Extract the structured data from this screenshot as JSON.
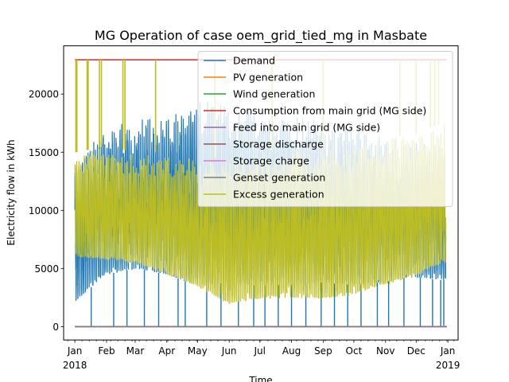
{
  "chart_data": {
    "type": "line",
    "title": "MG Operation of case oem_grid_tied_mg in Masbate",
    "xlabel": "Time",
    "ylabel": "Electricity flow in kWh",
    "x_range": [
      "2017-12-21",
      "2019-01-11"
    ],
    "ylim": [
      -1150,
      24150
    ],
    "yticks": [
      0,
      5000,
      10000,
      15000,
      20000
    ],
    "ytick_labels": [
      "0",
      "5000",
      "10000",
      "15000",
      "20000"
    ],
    "xticks": [
      {
        "date": "2018-01-01",
        "label": "Jan",
        "year": "2018"
      },
      {
        "date": "2018-02-01",
        "label": "Feb"
      },
      {
        "date": "2018-03-01",
        "label": "Mar"
      },
      {
        "date": "2018-04-01",
        "label": "Apr"
      },
      {
        "date": "2018-05-01",
        "label": "May"
      },
      {
        "date": "2018-06-01",
        "label": "Jun"
      },
      {
        "date": "2018-07-01",
        "label": "Jul"
      },
      {
        "date": "2018-08-01",
        "label": "Aug"
      },
      {
        "date": "2018-09-01",
        "label": "Sep"
      },
      {
        "date": "2018-10-01",
        "label": "Oct"
      },
      {
        "date": "2018-11-01",
        "label": "Nov"
      },
      {
        "date": "2018-12-01",
        "label": "Dec"
      },
      {
        "date": "2019-01-01",
        "label": "Jan",
        "year": "2019"
      }
    ],
    "grid": false,
    "legend_position": "upper-right",
    "series": [
      {
        "name": "Demand",
        "color": "#1f77b4",
        "envelope_min": [
          [
            1,
            2200
          ],
          [
            30,
            4500
          ],
          [
            60,
            5000
          ],
          [
            90,
            4500
          ],
          [
            120,
            3500
          ],
          [
            150,
            3800
          ],
          [
            180,
            3500
          ],
          [
            210,
            3600
          ],
          [
            240,
            3800
          ],
          [
            270,
            3600
          ],
          [
            300,
            3800
          ],
          [
            330,
            4300
          ],
          [
            360,
            4000
          ]
        ],
        "envelope_max": [
          [
            1,
            14000
          ],
          [
            30,
            17500
          ],
          [
            60,
            17800
          ],
          [
            90,
            18500
          ],
          [
            120,
            19500
          ],
          [
            150,
            19000
          ],
          [
            180,
            18500
          ],
          [
            210,
            18000
          ],
          [
            240,
            18000
          ],
          [
            270,
            17500
          ],
          [
            300,
            16500
          ],
          [
            330,
            16000
          ],
          [
            360,
            16000
          ]
        ],
        "dips_to_zero": true
      },
      {
        "name": "PV generation",
        "color": "#ff7f0e",
        "constant": 0
      },
      {
        "name": "Wind generation",
        "color": "#2ca02c",
        "constant": 0
      },
      {
        "name": "Consumption from main grid (MG side)",
        "color": "#d62728",
        "constant": 22950
      },
      {
        "name": "Feed into main grid (MG side)",
        "color": "#9467bd",
        "constant": 0
      },
      {
        "name": "Storage discharge",
        "color": "#8c564b",
        "constant": 0
      },
      {
        "name": "Storage charge",
        "color": "#e377c2",
        "constant": 0
      },
      {
        "name": "Genset generation",
        "color": "#7f7f7f",
        "constant": 0
      },
      {
        "name": "Excess generation",
        "color": "#bcbd22",
        "envelope_min": [
          [
            1,
            6000
          ],
          [
            30,
            5800
          ],
          [
            60,
            5500
          ],
          [
            90,
            4500
          ],
          [
            120,
            3500
          ],
          [
            150,
            2000
          ],
          [
            180,
            2400
          ],
          [
            210,
            2500
          ],
          [
            240,
            2400
          ],
          [
            270,
            2700
          ],
          [
            300,
            3600
          ],
          [
            330,
            4200
          ],
          [
            360,
            5500
          ]
        ],
        "envelope_max": [
          [
            1,
            15000
          ],
          [
            30,
            15500
          ],
          [
            60,
            15000
          ],
          [
            90,
            15000
          ],
          [
            120,
            14500
          ],
          [
            150,
            14500
          ],
          [
            180,
            14800
          ],
          [
            210,
            15000
          ],
          [
            240,
            15500
          ],
          [
            270,
            15800
          ],
          [
            300,
            16200
          ],
          [
            330,
            16500
          ],
          [
            360,
            17500
          ]
        ],
        "spikes_to": 22950
      }
    ]
  }
}
